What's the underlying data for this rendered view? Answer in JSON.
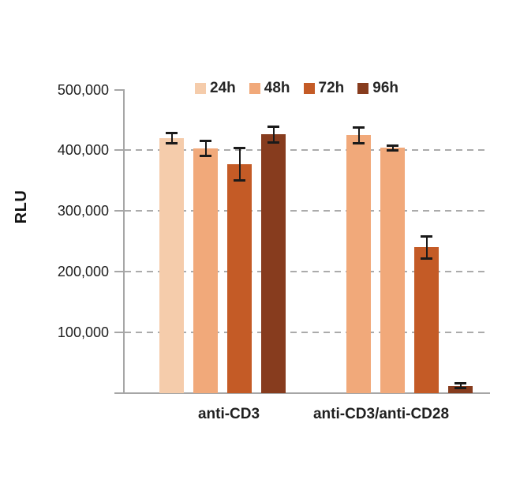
{
  "y_axis": {
    "label": "RLU",
    "ticks": [
      {
        "label": "500,000",
        "value": 500000
      },
      {
        "label": "400,000",
        "value": 400000
      },
      {
        "label": "300,000",
        "value": 300000
      },
      {
        "label": "200,000",
        "value": 200000
      },
      {
        "label": "100,000",
        "value": 100000
      }
    ]
  },
  "colors": {
    "axis": "#a6a6a6",
    "gridline": "#ababab",
    "error_bar": "#1a1a1a",
    "text": "#1f1f1f"
  },
  "chart_data": {
    "type": "bar",
    "title": "",
    "xlabel": "",
    "ylabel": "RLU",
    "ylim": [
      0,
      500000
    ],
    "grid": "horizontal dashed gridlines every 100,000 (100k-400k)",
    "legend_position": "top",
    "error_bars": true,
    "categories": [
      "anti-CD3",
      "anti-CD3/anti-CD28"
    ],
    "series": [
      {
        "name": "24h",
        "color": "#F5CCAB",
        "bar_colors": [
          "#F5CCAB",
          "#F1A97A"
        ],
        "values": [
          420000,
          425000
        ],
        "errors": [
          10000,
          15000
        ]
      },
      {
        "name": "48h",
        "color": "#F1A97A",
        "bar_colors": [
          "#F1A97A",
          "#F1A97A"
        ],
        "values": [
          403000,
          404000
        ],
        "errors": [
          14000,
          6000
        ]
      },
      {
        "name": "72h",
        "color": "#C45B26",
        "bar_colors": [
          "#C45B26",
          "#C45B26"
        ],
        "values": [
          377000,
          240000
        ],
        "errors": [
          29000,
          20000
        ]
      },
      {
        "name": "96h",
        "color": "#873C1E",
        "bar_colors": [
          "#873C1E",
          "#873C1E"
        ],
        "values": [
          426000,
          12000
        ],
        "errors": [
          15000,
          6000
        ]
      }
    ]
  }
}
